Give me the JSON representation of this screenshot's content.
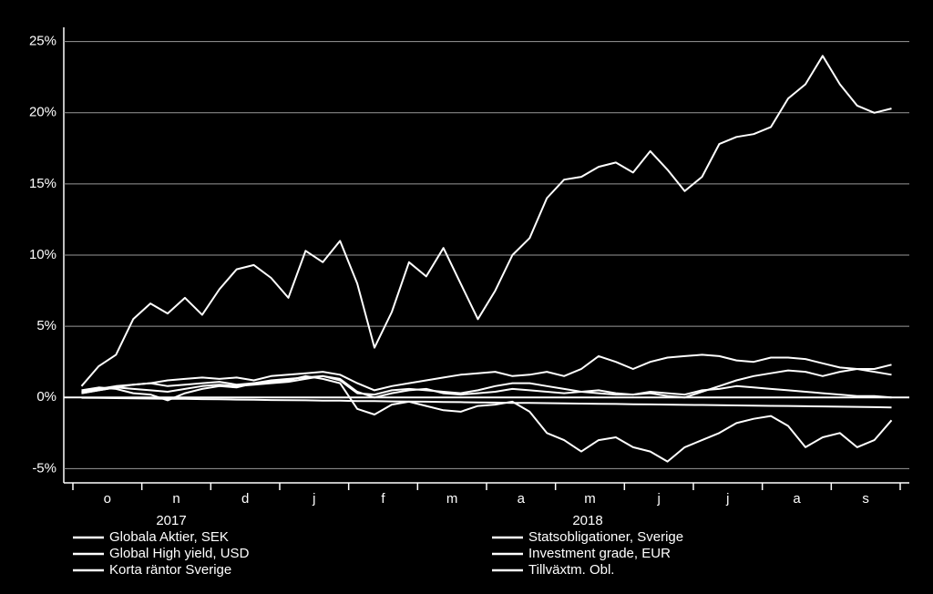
{
  "chart_data": {
    "type": "line",
    "categories": [
      null,
      "o",
      null,
      null,
      null,
      "n",
      null,
      null,
      null,
      "d",
      null,
      null,
      null,
      "j",
      null,
      null,
      null,
      "f",
      null,
      null,
      null,
      "m",
      null,
      null,
      null,
      "a",
      null,
      null,
      null,
      "m",
      null,
      null,
      null,
      "j",
      null,
      null,
      null,
      "j",
      null,
      null,
      null,
      "a",
      null,
      null,
      null,
      "s",
      null,
      null
    ],
    "annotations": [
      "2017",
      "2018"
    ],
    "ylim": [
      -6,
      26
    ],
    "yticks": [
      {
        "value": -5,
        "label": "-5%"
      },
      {
        "value": 0,
        "label": "0%"
      },
      {
        "value": 5,
        "label": "5%"
      },
      {
        "value": 10,
        "label": "10%"
      },
      {
        "value": 15,
        "label": "15%"
      },
      {
        "value": 20,
        "label": "20%"
      },
      {
        "value": 25,
        "label": "25%"
      }
    ],
    "grid": true,
    "series": [
      {
        "name": "Globala Aktier, SEK",
        "color": "#ffffff",
        "values": [
          0.8,
          2.2,
          3.0,
          5.5,
          6.6,
          5.9,
          7.0,
          5.8,
          7.6,
          9.0,
          9.3,
          8.4,
          7.0,
          10.3,
          9.5,
          11.0,
          8.0,
          3.5,
          6.0,
          9.5,
          8.5,
          10.5,
          8.0,
          5.5,
          7.5,
          10.0,
          11.2,
          14.0,
          15.3,
          15.5,
          16.2,
          16.5,
          15.8,
          17.3,
          16.0,
          14.5,
          15.5,
          17.8,
          18.3,
          18.5,
          19.0,
          21.0,
          22.0,
          24.0,
          22.0,
          20.5,
          20.0,
          20.3
        ]
      },
      {
        "name": "Statsobligationer, Sverige",
        "color": "#ffffff",
        "values": [
          0.4,
          0.6,
          0.8,
          0.9,
          1.0,
          0.8,
          0.9,
          1.0,
          1.1,
          0.9,
          1.0,
          1.2,
          1.3,
          1.4,
          1.5,
          1.2,
          0.3,
          0.2,
          0.5,
          0.6,
          0.5,
          0.4,
          0.3,
          0.5,
          0.8,
          1.0,
          1.0,
          0.8,
          0.6,
          0.4,
          0.3,
          0.2,
          0.2,
          0.3,
          0.1,
          0.0,
          0.4,
          0.8,
          1.2,
          1.5,
          1.7,
          1.9,
          1.8,
          1.5,
          1.8,
          2.0,
          1.8,
          1.6
        ]
      },
      {
        "name": "Global High yield, USD",
        "color": "#ffffff",
        "values": [
          0.3,
          0.5,
          0.7,
          0.9,
          1.0,
          1.2,
          1.3,
          1.4,
          1.3,
          1.4,
          1.2,
          1.5,
          1.6,
          1.7,
          1.8,
          1.6,
          1.0,
          0.5,
          0.8,
          1.0,
          1.2,
          1.4,
          1.6,
          1.7,
          1.8,
          1.5,
          1.6,
          1.8,
          1.5,
          2.0,
          2.9,
          2.5,
          2.0,
          2.5,
          2.8,
          2.9,
          3.0,
          2.9,
          2.6,
          2.5,
          2.8,
          2.8,
          2.7,
          2.4,
          2.1,
          2.0,
          2.0,
          2.3
        ]
      },
      {
        "name": "Investment grade, EUR",
        "color": "#ffffff",
        "values": [
          0.3,
          0.5,
          0.7,
          0.6,
          0.5,
          0.4,
          0.6,
          0.8,
          0.9,
          0.8,
          0.9,
          1.0,
          1.1,
          1.3,
          1.5,
          1.3,
          0.4,
          0.0,
          0.3,
          0.5,
          0.6,
          0.3,
          0.2,
          0.3,
          0.4,
          0.6,
          0.5,
          0.4,
          0.3,
          0.4,
          0.5,
          0.3,
          0.2,
          0.4,
          0.3,
          0.2,
          0.5,
          0.6,
          0.8,
          0.7,
          0.6,
          0.5,
          0.4,
          0.3,
          0.2,
          0.1,
          0.1,
          0.0
        ]
      },
      {
        "name": "Korta räntor Sverige",
        "color": "#ffffff",
        "values": [
          -0.02,
          -0.03,
          -0.05,
          -0.06,
          -0.08,
          -0.09,
          -0.1,
          -0.12,
          -0.13,
          -0.15,
          -0.16,
          -0.18,
          -0.19,
          -0.2,
          -0.22,
          -0.23,
          -0.25,
          -0.26,
          -0.28,
          -0.29,
          -0.3,
          -0.32,
          -0.33,
          -0.35,
          -0.36,
          -0.38,
          -0.39,
          -0.4,
          -0.42,
          -0.43,
          -0.45,
          -0.46,
          -0.48,
          -0.49,
          -0.5,
          -0.52,
          -0.53,
          -0.55,
          -0.56,
          -0.58,
          -0.59,
          -0.6,
          -0.62,
          -0.63,
          -0.65,
          -0.66,
          -0.68,
          -0.7
        ]
      },
      {
        "name": "Tillväxtm. Obl.",
        "color": "#ffffff",
        "values": [
          0.5,
          0.7,
          0.6,
          0.3,
          0.2,
          -0.2,
          0.3,
          0.6,
          0.8,
          0.7,
          1.0,
          1.1,
          1.2,
          1.5,
          1.3,
          1.0,
          -0.8,
          -1.2,
          -0.5,
          -0.3,
          -0.6,
          -0.9,
          -1.0,
          -0.6,
          -0.5,
          -0.3,
          -1.0,
          -2.5,
          -3.0,
          -3.8,
          -3.0,
          -2.8,
          -3.5,
          -3.8,
          -4.5,
          -3.5,
          -3.0,
          -2.5,
          -1.8,
          -1.5,
          -1.3,
          -2.0,
          -3.5,
          -2.8,
          -2.5,
          -3.5,
          -3.0,
          -1.6
        ]
      }
    ]
  }
}
